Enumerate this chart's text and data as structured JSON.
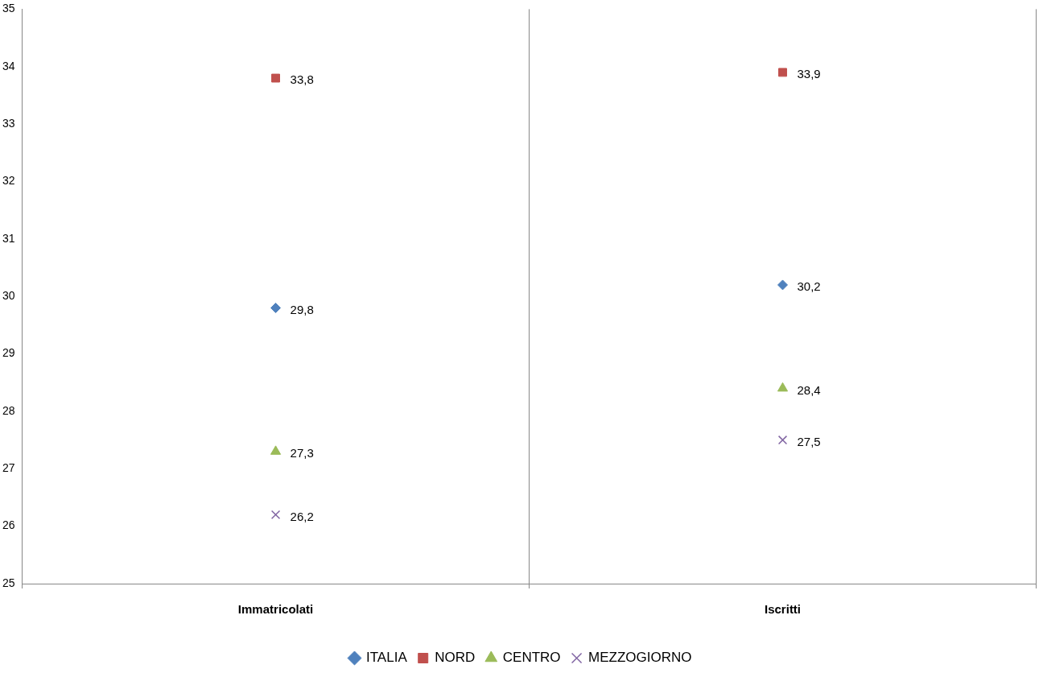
{
  "chart_data": {
    "type": "scatter",
    "categories": [
      "Immatricolati",
      "Iscritti"
    ],
    "ylim": [
      25,
      35
    ],
    "yticks": [
      25,
      26,
      27,
      28,
      29,
      30,
      31,
      32,
      33,
      34,
      35
    ],
    "grid": "x",
    "legend": "bottom",
    "series": [
      {
        "name": "ITALIA",
        "color": "#4f81bd",
        "marker": "diamond",
        "x": [
          "Immatricolati",
          "Iscritti"
        ],
        "values": [
          29.8,
          30.2
        ],
        "value_labels": [
          "29,8",
          "30,2"
        ]
      },
      {
        "name": "NORD",
        "color": "#c0504d",
        "marker": "square",
        "x": [
          "Immatricolati",
          "Iscritti"
        ],
        "values": [
          33.8,
          33.9
        ],
        "value_labels": [
          "33,8",
          "33,9"
        ]
      },
      {
        "name": "CENTRO",
        "color": "#9bbb59",
        "marker": "triangle",
        "x": [
          "Immatricolati",
          "Iscritti"
        ],
        "values": [
          27.3,
          28.4
        ],
        "value_labels": [
          "27,3",
          "28,4"
        ]
      },
      {
        "name": "MEZZOGIORNO",
        "color": "#8064a2",
        "marker": "cross",
        "x": [
          "Immatricolati",
          "Iscritti"
        ],
        "values": [
          26.2,
          27.5
        ],
        "value_labels": [
          "26,2",
          "27,5"
        ]
      }
    ]
  }
}
